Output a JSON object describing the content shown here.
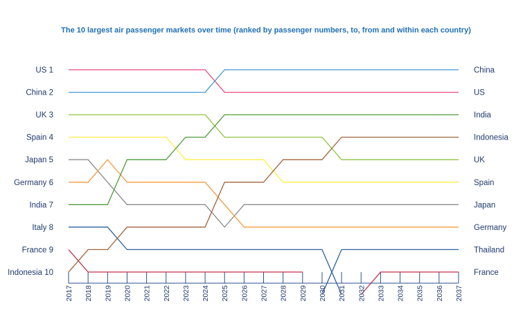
{
  "chart_data": {
    "type": "line",
    "title": "The 10 largest air passenger markets over time (ranked by passenger numbers, to, from and within each country)",
    "x": [
      "2017",
      "2018",
      "2019",
      "2020",
      "2021",
      "2022",
      "2023",
      "2024",
      "2025",
      "2026",
      "2027",
      "2028",
      "2029",
      "2030",
      "2031",
      "2032",
      "2033",
      "2034",
      "2035",
      "2036",
      "2037"
    ],
    "ylim": [
      1,
      10
    ],
    "y_inverted": true,
    "left_labels": [
      "US  1",
      "China  2",
      "UK  3",
      "Spain  4",
      "Japan  5",
      "Germany  6",
      "India  7",
      "Italy  8",
      "France  9",
      "Indonesia  10"
    ],
    "right_labels": [
      "China",
      "US",
      "India",
      "Indonesia",
      "UK",
      "Spain",
      "Japan",
      "Germany",
      "Thailand",
      "France"
    ],
    "series": [
      {
        "color": "#e8497a",
        "values": [
          1,
          1,
          1,
          1,
          1,
          1,
          1,
          1,
          2,
          2,
          2,
          2,
          2,
          2,
          2,
          2,
          2,
          2,
          2,
          2,
          2
        ]
      },
      {
        "color": "#3e98d6",
        "values": [
          2,
          2,
          2,
          2,
          2,
          2,
          2,
          2,
          1,
          1,
          1,
          1,
          1,
          1,
          1,
          1,
          1,
          1,
          1,
          1,
          1
        ]
      },
      {
        "color": "#8fc43f",
        "values": [
          3,
          3,
          3,
          3,
          3,
          3,
          3,
          3,
          4,
          4,
          4,
          4,
          4,
          4,
          5,
          5,
          5,
          5,
          5,
          5,
          5
        ]
      },
      {
        "color": "#ffec4a",
        "values": [
          4,
          4,
          4,
          4,
          4,
          4,
          5,
          5,
          5,
          5,
          5,
          6,
          6,
          6,
          6,
          6,
          6,
          6,
          6,
          6,
          6
        ]
      },
      {
        "color": "#8a8a8a",
        "values": [
          5,
          5,
          6,
          7,
          7,
          7,
          7,
          7,
          8,
          7,
          7,
          7,
          7,
          7,
          7,
          7,
          7,
          7,
          7,
          7,
          7
        ]
      },
      {
        "color": "#f59a3e",
        "values": [
          6,
          6,
          5,
          6,
          6,
          6,
          6,
          6,
          7,
          8,
          8,
          8,
          8,
          8,
          8,
          8,
          8,
          8,
          8,
          8,
          8
        ]
      },
      {
        "color": "#4e9a3a",
        "values": [
          7,
          7,
          7,
          5,
          5,
          5,
          4,
          4,
          3,
          3,
          3,
          3,
          3,
          3,
          3,
          3,
          3,
          3,
          3,
          3,
          3
        ]
      },
      {
        "color": "#2a5fa0",
        "values": [
          8,
          8,
          8,
          9,
          9,
          9,
          9,
          9,
          9,
          9,
          9,
          9,
          9,
          9,
          11,
          null,
          null,
          null,
          null,
          null,
          null
        ]
      },
      {
        "color": "#c0304a",
        "values": [
          9,
          10,
          10,
          10,
          10,
          10,
          10,
          10,
          10,
          10,
          10,
          10,
          10,
          null,
          null,
          null,
          null,
          null,
          null,
          null,
          null
        ]
      },
      {
        "color": "#a0623a",
        "values": [
          10,
          9,
          9,
          8,
          8,
          8,
          8,
          8,
          6,
          6,
          6,
          5,
          5,
          5,
          4,
          4,
          4,
          4,
          4,
          4,
          4
        ]
      },
      {
        "color": "#2a5fa0",
        "values": [
          null,
          null,
          null,
          null,
          null,
          null,
          null,
          null,
          null,
          null,
          null,
          null,
          null,
          11,
          9,
          9,
          9,
          9,
          9,
          9,
          9
        ]
      },
      {
        "color": "#c0304a",
        "values": [
          null,
          null,
          null,
          null,
          null,
          null,
          null,
          null,
          null,
          null,
          null,
          null,
          null,
          null,
          null,
          11,
          10,
          10,
          10,
          10,
          10
        ]
      }
    ]
  }
}
